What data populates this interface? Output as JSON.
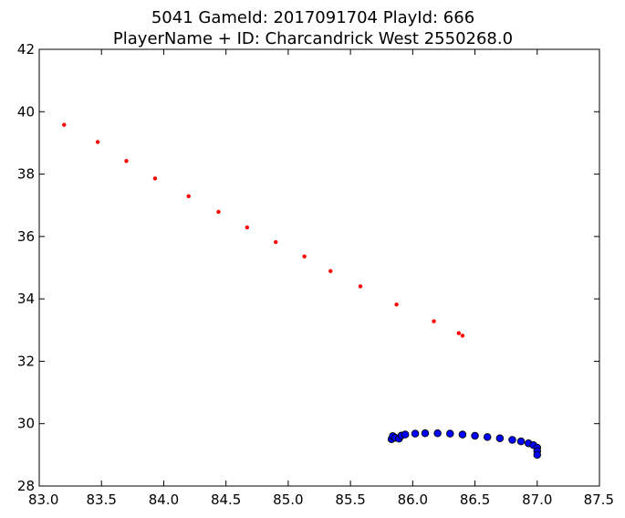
{
  "chart_data": {
    "type": "scatter",
    "title_lines": [
      "5041 GameId: 2017091704 PlayId: 666",
      "PlayerName + ID: Charcandrick West 2550268.0"
    ],
    "xlabel": "",
    "ylabel": "",
    "xlim": [
      83.0,
      87.5
    ],
    "ylim": [
      28,
      42
    ],
    "x_ticks": [
      83.0,
      83.5,
      84.0,
      84.5,
      85.0,
      85.5,
      86.0,
      86.5,
      87.0,
      87.5
    ],
    "x_tick_labels": [
      "83.0",
      "83.5",
      "84.0",
      "84.5",
      "85.0",
      "85.5",
      "86.0",
      "86.5",
      "87.0",
      "87.5"
    ],
    "y_ticks": [
      28,
      30,
      32,
      34,
      36,
      38,
      40,
      42
    ],
    "y_tick_labels": [
      "28",
      "30",
      "32",
      "34",
      "36",
      "38",
      "40",
      "42"
    ],
    "grid": false,
    "series": [
      {
        "color": "#ff0000",
        "marker": "small-dot",
        "points": [
          [
            83.2,
            39.58
          ],
          [
            83.47,
            39.03
          ],
          [
            83.7,
            38.42
          ],
          [
            83.93,
            37.86
          ],
          [
            84.2,
            37.29
          ],
          [
            84.44,
            36.79
          ],
          [
            84.67,
            36.29
          ],
          [
            84.9,
            35.82
          ],
          [
            85.13,
            35.36
          ],
          [
            85.34,
            34.89
          ],
          [
            85.58,
            34.4
          ],
          [
            85.87,
            33.82
          ],
          [
            86.17,
            33.28
          ],
          [
            86.37,
            32.9
          ],
          [
            86.4,
            32.82
          ]
        ]
      },
      {
        "color": "#0000ff",
        "marker": "circle-edged",
        "points": [
          [
            85.83,
            29.5
          ],
          [
            85.84,
            29.6
          ],
          [
            85.86,
            29.55
          ],
          [
            85.89,
            29.52
          ],
          [
            85.91,
            29.62
          ],
          [
            85.94,
            29.65
          ],
          [
            86.02,
            29.68
          ],
          [
            86.1,
            29.69
          ],
          [
            86.2,
            29.69
          ],
          [
            86.3,
            29.68
          ],
          [
            86.4,
            29.65
          ],
          [
            86.5,
            29.61
          ],
          [
            86.6,
            29.57
          ],
          [
            86.7,
            29.53
          ],
          [
            86.8,
            29.48
          ],
          [
            86.87,
            29.43
          ],
          [
            86.93,
            29.37
          ],
          [
            86.97,
            29.31
          ],
          [
            87.0,
            29.23
          ],
          [
            87.0,
            29.12
          ],
          [
            87.0,
            29.0
          ]
        ]
      }
    ]
  }
}
